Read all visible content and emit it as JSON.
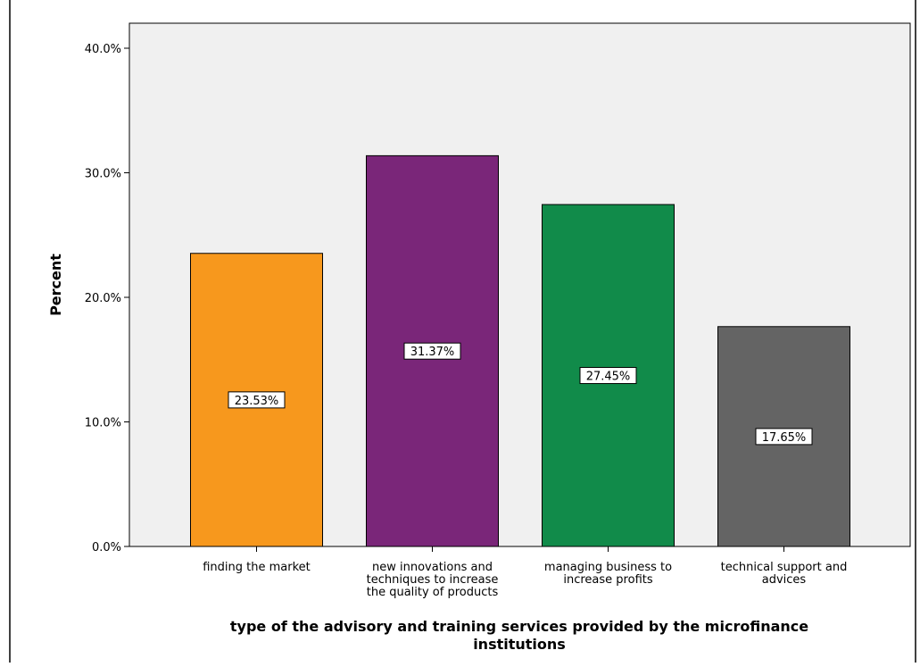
{
  "chart_data": {
    "type": "bar",
    "categories": [
      [
        "finding the  market"
      ],
      [
        "new innovations and",
        "techniques to increase",
        "the quality of products"
      ],
      [
        "managing business to",
        "increase profits"
      ],
      [
        "technical support and",
        "advices"
      ]
    ],
    "values": [
      23.53,
      31.37,
      27.45,
      17.65
    ],
    "data_labels": [
      "23.53%",
      "31.37%",
      "27.45%",
      "17.65%"
    ],
    "colors": [
      "#F7981D",
      "#7A2679",
      "#118B4A",
      "#646464"
    ],
    "ylabel": "Percent",
    "xlabel": [
      "type of the advisory and training services provided by the microfinance",
      "institutions"
    ],
    "ylim": [
      0,
      40
    ],
    "yticks": [
      0,
      10,
      20,
      30,
      40
    ],
    "ytick_labels": [
      "0.0%",
      "10.0%",
      "20.0%",
      "30.0%",
      "40.0%"
    ],
    "plot_background": "#F0F0F0",
    "grid": false,
    "legend": "none"
  }
}
